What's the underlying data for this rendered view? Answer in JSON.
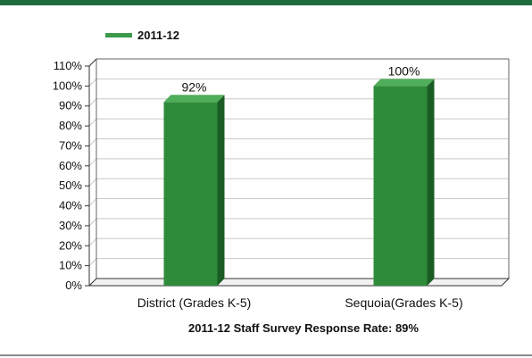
{
  "chart_data": {
    "type": "bar",
    "categories": [
      "District (Grades K-5)",
      "Sequoia(Grades K-5)"
    ],
    "series": [
      {
        "name": "2011-12",
        "values": [
          92,
          100
        ]
      }
    ],
    "data_labels": [
      "92%",
      "100%"
    ],
    "xlabel": "2011-12 Staff Survey Response Rate: 89%",
    "ylabel": "",
    "ylim": [
      0,
      110
    ],
    "y_ticks": [
      "0%",
      "10%",
      "20%",
      "30%",
      "40%",
      "50%",
      "60%",
      "70%",
      "80%",
      "90%",
      "100%",
      "110%"
    ],
    "grid": true,
    "legend_position": "top-left",
    "colors": {
      "bar_front": "#2e8b3a",
      "bar_side": "#1b5c24",
      "bar_top": "#4fae5a",
      "accent": "#1e6b3c"
    }
  }
}
